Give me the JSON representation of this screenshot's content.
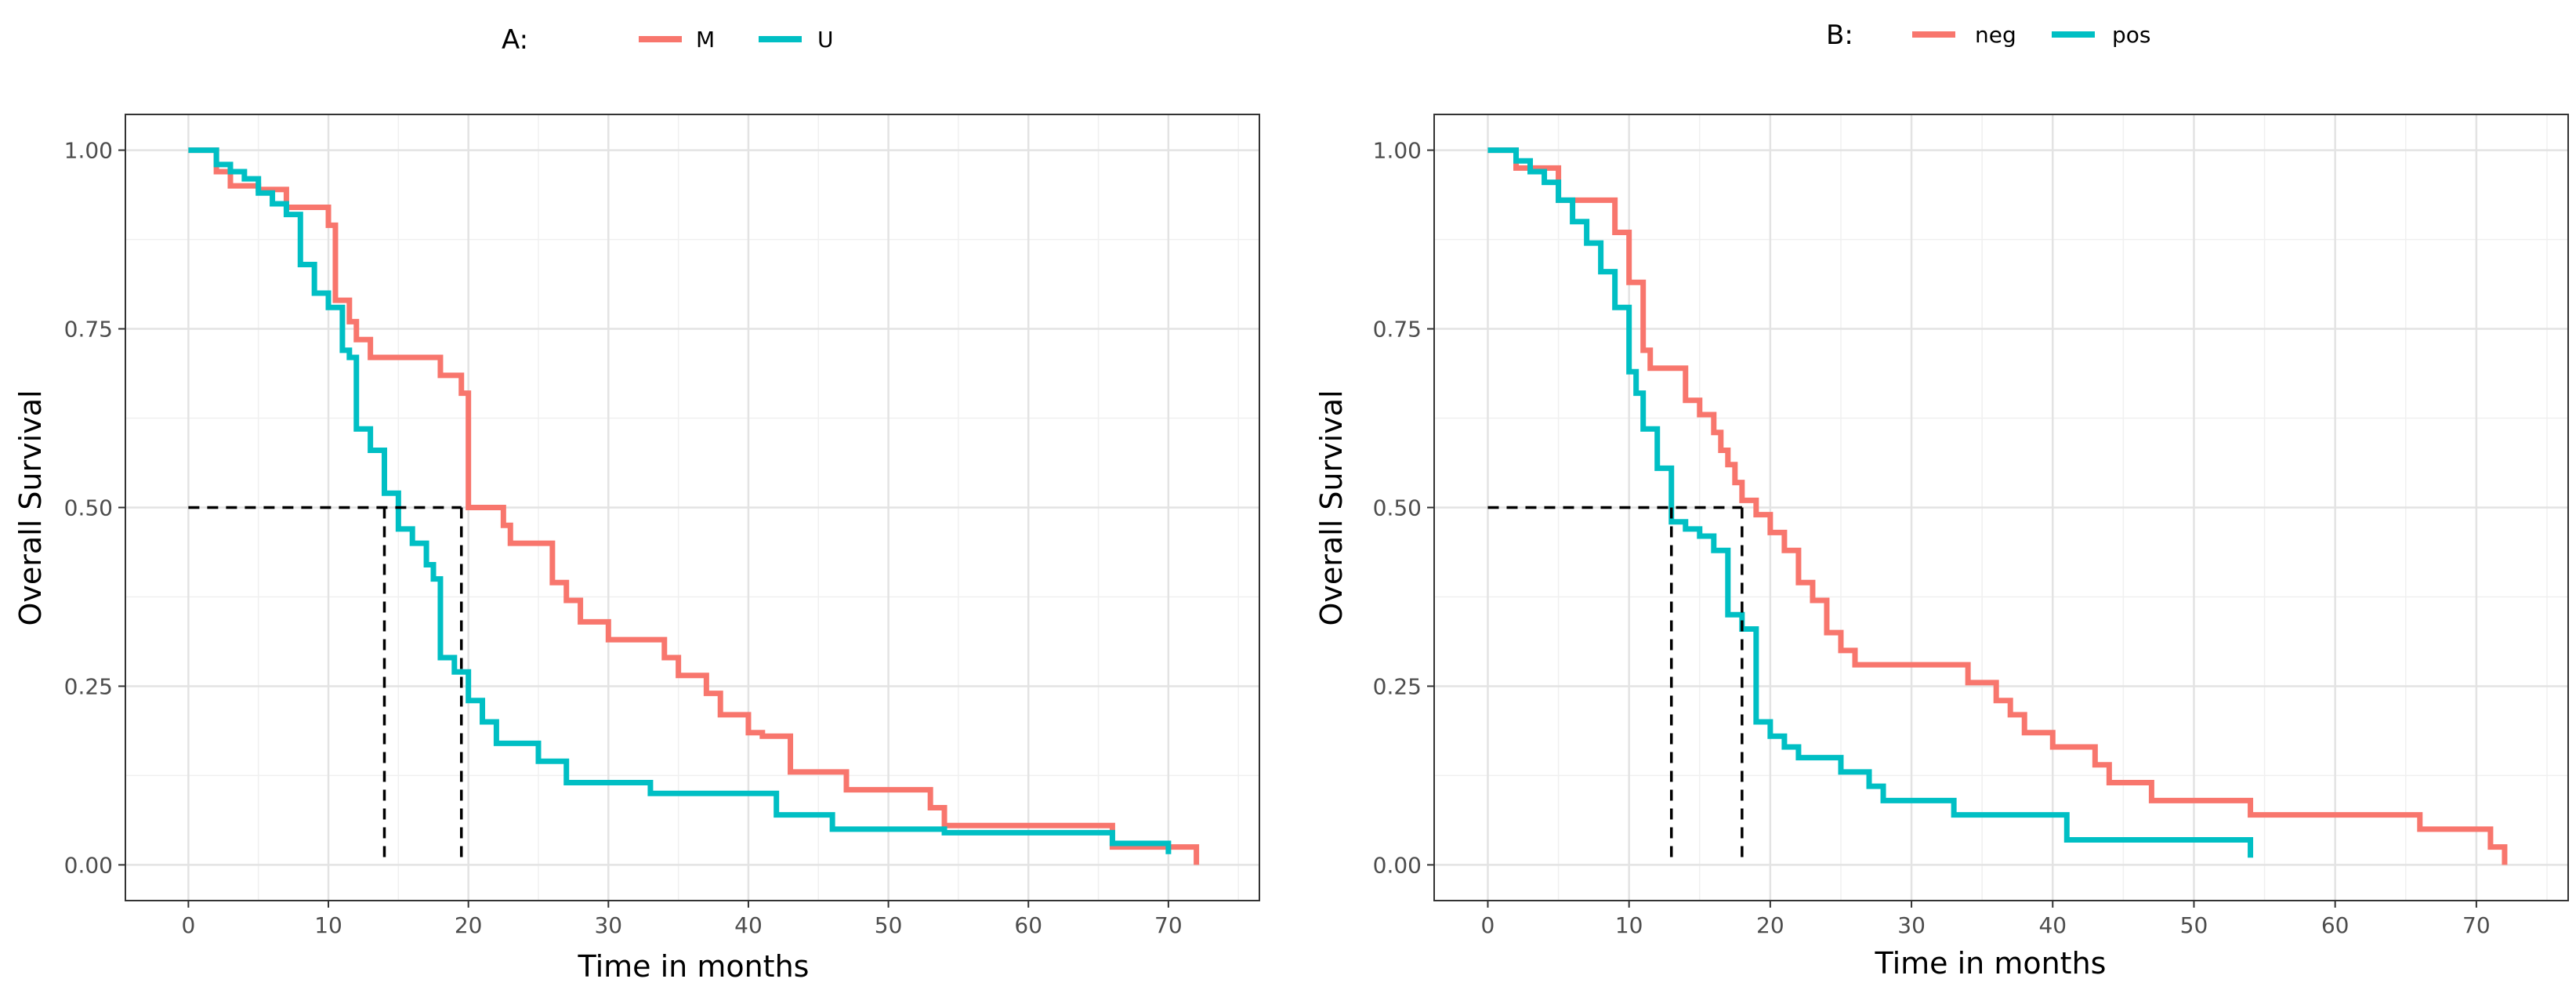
{
  "chart_data": [
    {
      "type": "line",
      "step": "post",
      "legend_title": "A:",
      "xlabel": "Time in months",
      "ylabel": "Overall Survival",
      "xlim": [
        -4.5,
        76.5
      ],
      "ylim": [
        -0.05,
        1.05
      ],
      "xticks": [
        "0",
        "10",
        "20",
        "30",
        "40",
        "50",
        "60",
        "70"
      ],
      "yticks": [
        "0.00",
        "0.25",
        "0.50",
        "0.75",
        "1.00"
      ],
      "legend_position": "top",
      "median_lines": [
        14,
        19.5
      ],
      "series": [
        {
          "name": "M",
          "color": "#F8766D",
          "x": [
            0,
            2,
            3,
            5,
            7,
            10,
            10.5,
            11.5,
            12,
            13,
            18,
            19.5,
            20,
            22.5,
            23,
            26,
            27,
            28,
            30,
            34,
            35,
            37,
            38,
            40,
            41,
            43,
            47,
            53,
            54,
            66,
            72
          ],
          "y": [
            1.0,
            0.97,
            0.95,
            0.945,
            0.92,
            0.895,
            0.79,
            0.76,
            0.735,
            0.71,
            0.685,
            0.66,
            0.5,
            0.475,
            0.45,
            0.395,
            0.37,
            0.34,
            0.315,
            0.29,
            0.265,
            0.24,
            0.21,
            0.185,
            0.18,
            0.13,
            0.105,
            0.08,
            0.055,
            0.025,
            0.0
          ]
        },
        {
          "name": "U",
          "color": "#00BFC4",
          "x": [
            0,
            2,
            3,
            4,
            5,
            6,
            7,
            8,
            9,
            10,
            11,
            11.5,
            12,
            13,
            14,
            15,
            16,
            17,
            17.5,
            18,
            19,
            20,
            21,
            22,
            25,
            27,
            33,
            42,
            46,
            54,
            66,
            70
          ],
          "y": [
            1.0,
            0.98,
            0.97,
            0.96,
            0.94,
            0.925,
            0.91,
            0.84,
            0.8,
            0.78,
            0.72,
            0.71,
            0.61,
            0.58,
            0.52,
            0.47,
            0.45,
            0.42,
            0.4,
            0.29,
            0.27,
            0.23,
            0.2,
            0.17,
            0.145,
            0.115,
            0.1,
            0.07,
            0.05,
            0.045,
            0.03,
            0.015
          ]
        }
      ]
    },
    {
      "type": "line",
      "step": "post",
      "legend_title": "B:",
      "xlabel": "Time in months",
      "ylabel": "Overall Survival",
      "xlim": [
        -3.8,
        76.5
      ],
      "ylim": [
        -0.05,
        1.05
      ],
      "xticks": [
        "0",
        "10",
        "20",
        "30",
        "40",
        "50",
        "60",
        "70"
      ],
      "yticks": [
        "0.00",
        "0.25",
        "0.50",
        "0.75",
        "1.00"
      ],
      "legend_position": "top",
      "median_lines": [
        13,
        18
      ],
      "series": [
        {
          "name": "neg",
          "color": "#F8766D",
          "x": [
            0,
            2,
            3,
            5,
            6,
            9,
            10,
            11,
            11.5,
            12,
            14,
            15,
            16,
            16.5,
            17,
            17.5,
            18,
            19,
            20,
            21,
            22,
            23,
            24,
            25,
            26,
            33,
            34,
            36,
            37,
            38,
            40,
            43,
            44,
            47,
            54,
            66,
            71,
            72
          ],
          "y": [
            1.0,
            0.975,
            0.975,
            0.93,
            0.93,
            0.885,
            0.815,
            0.72,
            0.695,
            0.695,
            0.65,
            0.63,
            0.605,
            0.58,
            0.56,
            0.535,
            0.51,
            0.49,
            0.465,
            0.44,
            0.395,
            0.37,
            0.325,
            0.3,
            0.28,
            0.28,
            0.255,
            0.23,
            0.21,
            0.185,
            0.165,
            0.14,
            0.115,
            0.09,
            0.07,
            0.05,
            0.025,
            0.0
          ]
        },
        {
          "name": "pos",
          "color": "#00BFC4",
          "x": [
            0,
            2,
            3,
            4,
            5,
            6,
            7,
            8,
            9,
            10,
            10.5,
            11,
            12,
            13,
            14,
            15,
            16,
            17,
            18,
            19,
            20,
            21,
            22,
            25,
            27,
            28,
            30,
            33,
            41,
            54
          ],
          "y": [
            1.0,
            0.985,
            0.97,
            0.955,
            0.93,
            0.9,
            0.87,
            0.83,
            0.78,
            0.69,
            0.66,
            0.61,
            0.555,
            0.48,
            0.47,
            0.46,
            0.44,
            0.35,
            0.33,
            0.2,
            0.18,
            0.165,
            0.15,
            0.13,
            0.11,
            0.09,
            0.09,
            0.07,
            0.035,
            0.01
          ]
        }
      ]
    }
  ]
}
